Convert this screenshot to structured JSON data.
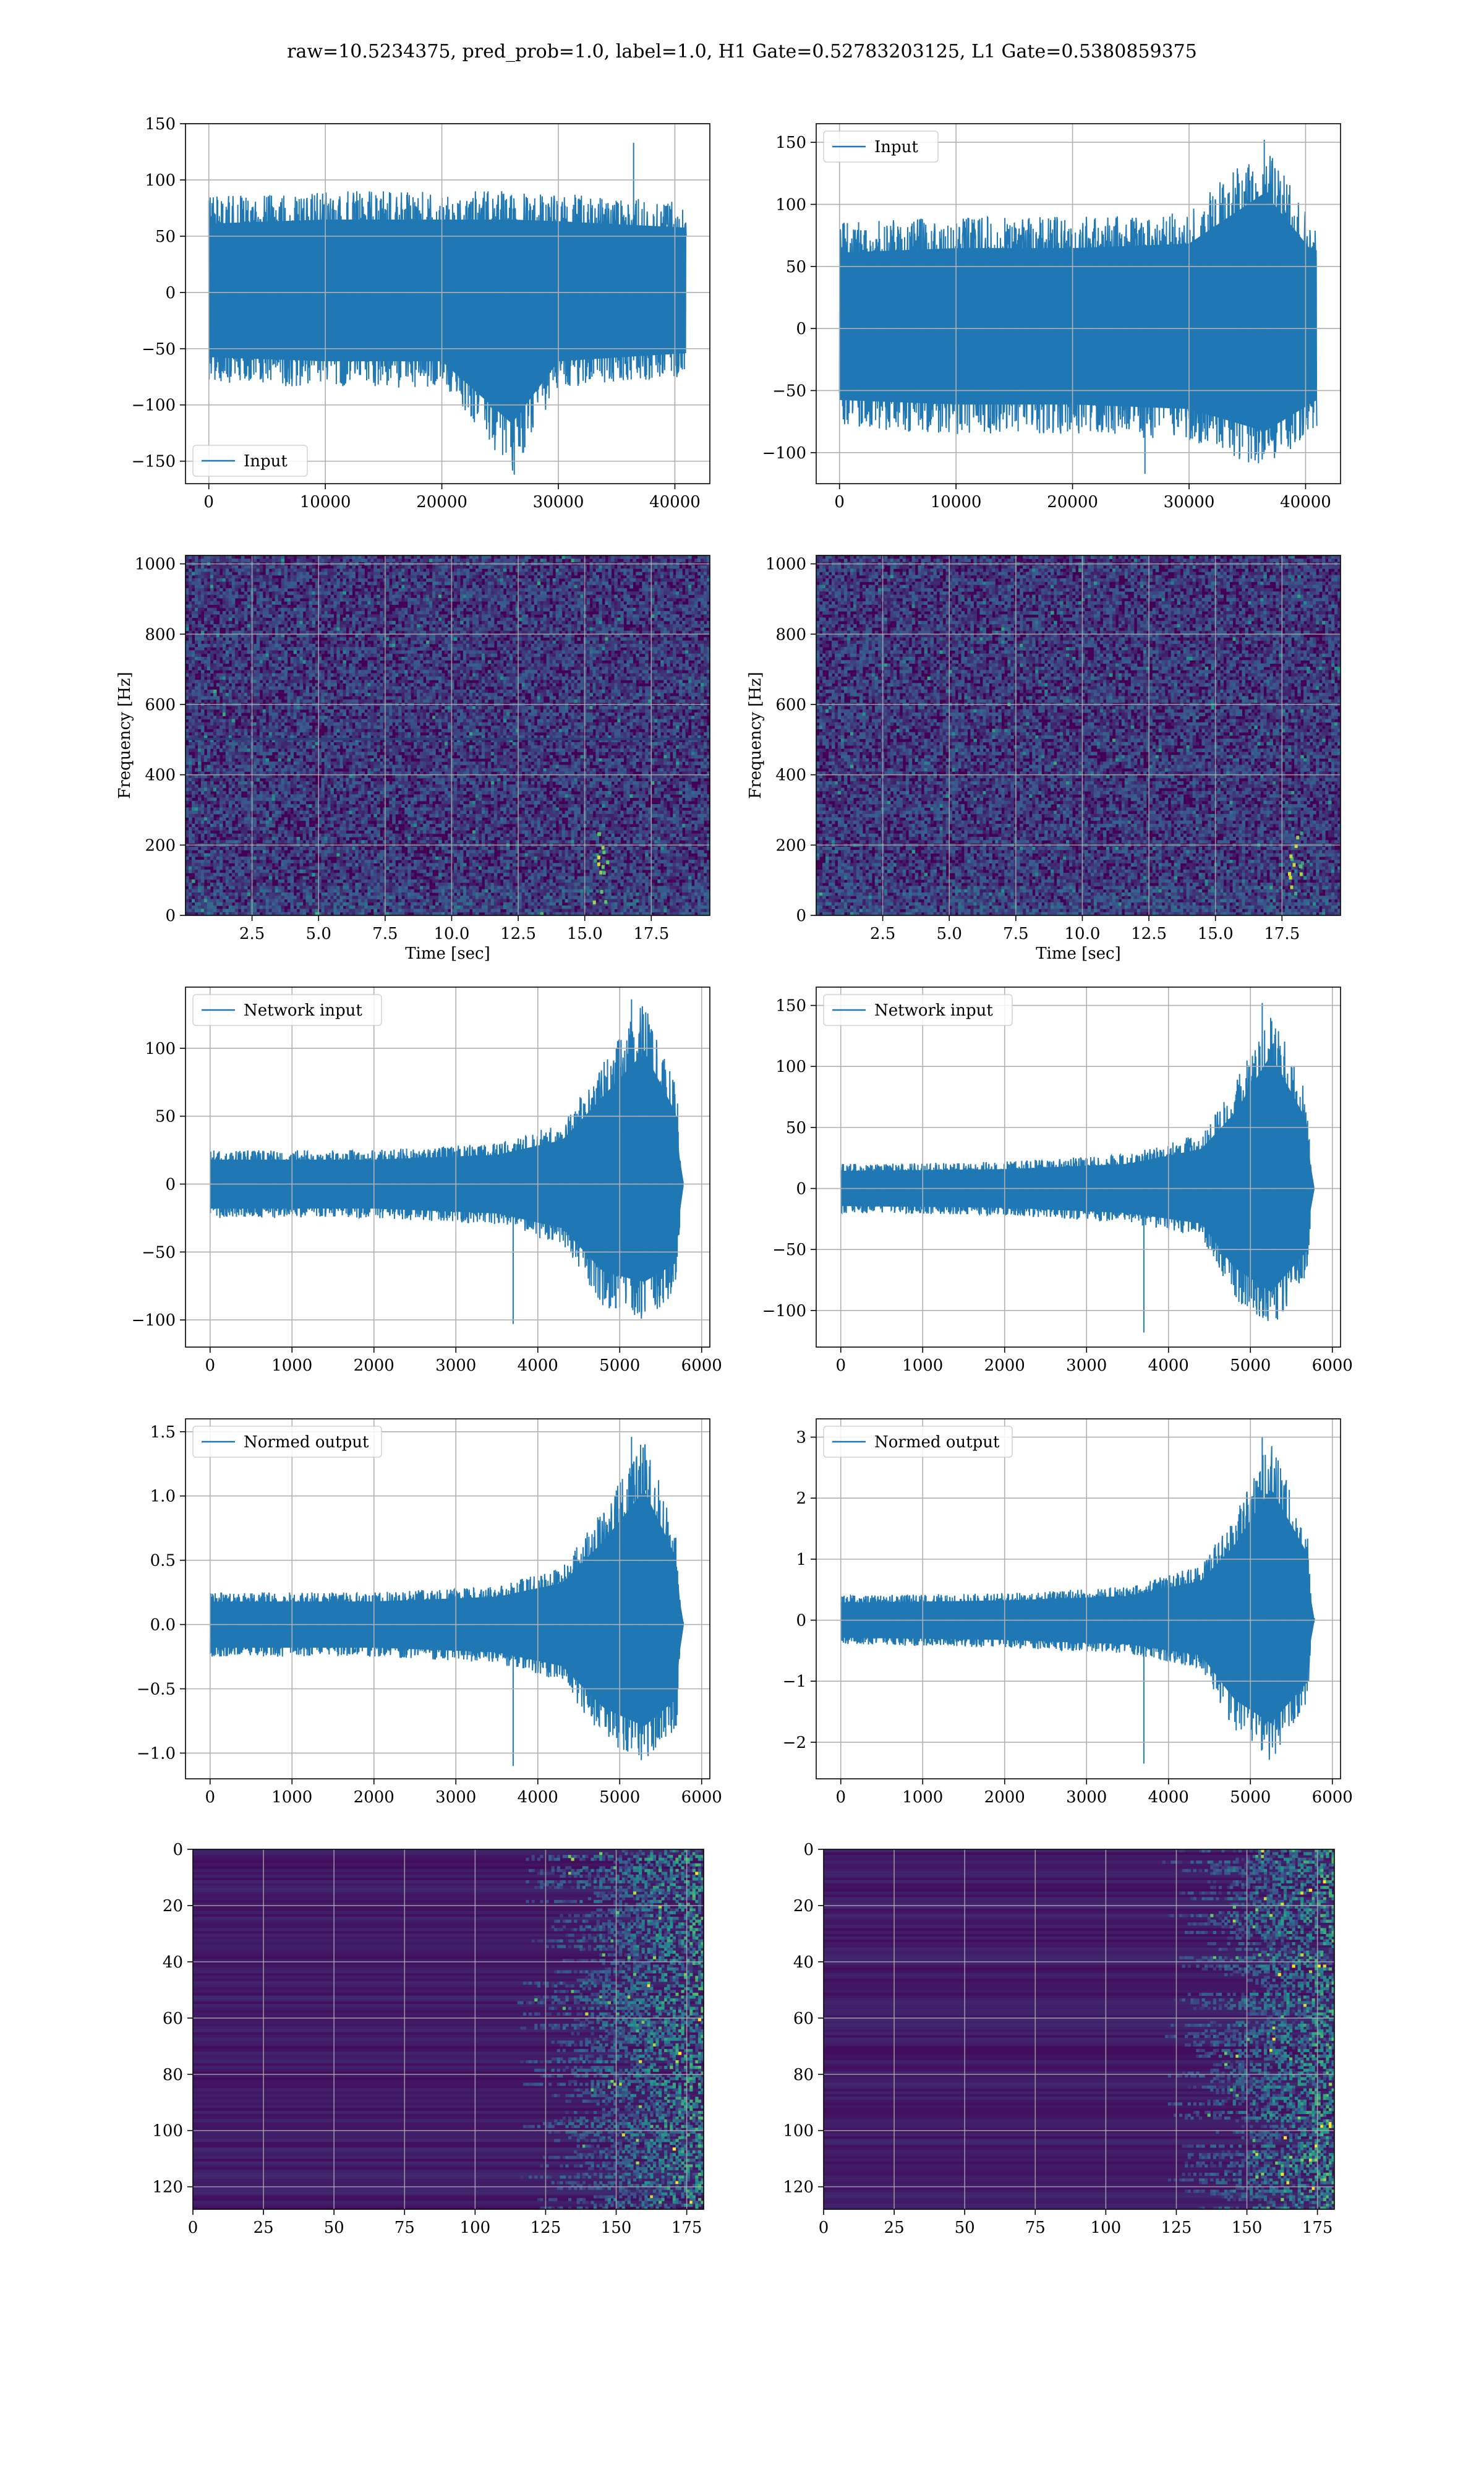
{
  "suptitle": "raw=10.5234375, pred_prob=1.0, label=1.0, H1 Gate=0.52783203125, L1 Gate=0.5380859375",
  "colors": {
    "line": "#1f77b4",
    "grid": "#b0b0b0",
    "viridis_low": "#440154",
    "viridis_mid": "#21918c",
    "viridis_high": "#fde725"
  },
  "chart_data": [
    {
      "id": "h1-input",
      "type": "line",
      "title": "",
      "xlabel": "",
      "ylabel": "",
      "xlim": [
        -2000,
        43000
      ],
      "ylim": [
        -170,
        150
      ],
      "xticks": [
        0,
        10000,
        20000,
        30000,
        40000
      ],
      "xtick_labels": [
        "0",
        "10000",
        "20000",
        "30000",
        "40000"
      ],
      "yticks": [
        -150,
        -100,
        -50,
        0,
        50,
        100,
        150
      ],
      "ytick_labels": [
        "−150",
        "−100",
        "−50",
        "0",
        "50",
        "100",
        "150"
      ],
      "legend": {
        "label": "Input",
        "loc": "lower left"
      },
      "series": [
        {
          "name": "Input",
          "x_range": [
            0,
            40960
          ],
          "envelope_points": [
            [
              0,
              -80,
              85
            ],
            [
              10000,
              -85,
              90
            ],
            [
              20000,
              -85,
              90
            ],
            [
              26000,
              -162,
              90
            ],
            [
              30000,
              -85,
              88
            ],
            [
              40960,
              -75,
              80
            ]
          ],
          "peak_max": 133,
          "peak_min": -162,
          "typical_band": [
            -75,
            75
          ]
        }
      ],
      "grid": true
    },
    {
      "id": "l1-input",
      "type": "line",
      "title": "",
      "xlabel": "",
      "ylabel": "",
      "xlim": [
        -2000,
        43000
      ],
      "ylim": [
        -125,
        165
      ],
      "xticks": [
        0,
        10000,
        20000,
        30000,
        40000
      ],
      "xtick_labels": [
        "0",
        "10000",
        "20000",
        "30000",
        "40000"
      ],
      "yticks": [
        -100,
        -50,
        0,
        50,
        100,
        150
      ],
      "ytick_labels": [
        "−100",
        "−50",
        "0",
        "50",
        "100",
        "150"
      ],
      "legend": {
        "label": "Input",
        "loc": "upper left"
      },
      "series": [
        {
          "name": "Input",
          "x_range": [
            0,
            40960
          ],
          "envelope_points": [
            [
              0,
              -80,
              85
            ],
            [
              10000,
              -85,
              90
            ],
            [
              20000,
              -85,
              90
            ],
            [
              30000,
              -90,
              95
            ],
            [
              36500,
              -115,
              152
            ],
            [
              40960,
              -80,
              80
            ]
          ],
          "peak_max": 152,
          "peak_min": -117,
          "typical_band": [
            -70,
            70
          ]
        }
      ],
      "grid": true
    },
    {
      "id": "h1-spectrogram",
      "type": "heatmap",
      "title": "",
      "xlabel": "Time [sec]",
      "ylabel": "Frequency [Hz]",
      "xlim": [
        0,
        19.7
      ],
      "ylim": [
        0,
        1024
      ],
      "xticks": [
        2.5,
        5.0,
        7.5,
        10.0,
        12.5,
        15.0,
        17.5
      ],
      "xtick_labels": [
        "2.5",
        "5.0",
        "7.5",
        "10.0",
        "12.5",
        "15.0",
        "17.5"
      ],
      "yticks": [
        0,
        200,
        400,
        600,
        800,
        1000
      ],
      "ytick_labels": [
        "0",
        "200",
        "400",
        "600",
        "800",
        "1000"
      ],
      "colormap": "viridis",
      "grid": true
    },
    {
      "id": "l1-spectrogram",
      "type": "heatmap",
      "title": "",
      "xlabel": "Time [sec]",
      "ylabel": "Frequency [Hz]",
      "xlim": [
        0,
        19.7
      ],
      "ylim": [
        0,
        1024
      ],
      "xticks": [
        2.5,
        5.0,
        7.5,
        10.0,
        12.5,
        15.0,
        17.5
      ],
      "xtick_labels": [
        "2.5",
        "5.0",
        "7.5",
        "10.0",
        "12.5",
        "15.0",
        "17.5"
      ],
      "yticks": [
        0,
        200,
        400,
        600,
        800,
        1000
      ],
      "ytick_labels": [
        "0",
        "200",
        "400",
        "600",
        "800",
        "1000"
      ],
      "colormap": "viridis",
      "grid": true
    },
    {
      "id": "h1-network-input",
      "type": "line",
      "title": "",
      "xlabel": "",
      "ylabel": "",
      "xlim": [
        -300,
        6100
      ],
      "ylim": [
        -120,
        145
      ],
      "xticks": [
        0,
        1000,
        2000,
        3000,
        4000,
        5000,
        6000
      ],
      "xtick_labels": [
        "0",
        "1000",
        "2000",
        "3000",
        "4000",
        "5000",
        "6000"
      ],
      "yticks": [
        -100,
        -50,
        0,
        50,
        100
      ],
      "ytick_labels": [
        "−100",
        "−50",
        "0",
        "50",
        "100"
      ],
      "legend": {
        "label": "Network input",
        "loc": "upper left"
      },
      "series": [
        {
          "name": "Network input",
          "x_range": [
            0,
            5780
          ],
          "envelope_points": [
            [
              0,
              -25,
              25
            ],
            [
              2000,
              -25,
              25
            ],
            [
              3500,
              -30,
              30
            ],
            [
              4300,
              -45,
              45
            ],
            [
              4800,
              -90,
              90
            ],
            [
              5300,
              -100,
              135
            ],
            [
              5700,
              -80,
              70
            ],
            [
              5750,
              -2,
              2
            ]
          ],
          "peak_max": 136,
          "peak_min": -103,
          "typical_band": [
            -12,
            12
          ]
        }
      ],
      "grid": true
    },
    {
      "id": "l1-network-input",
      "type": "line",
      "title": "",
      "xlabel": "",
      "ylabel": "",
      "xlim": [
        -300,
        6100
      ],
      "ylim": [
        -130,
        165
      ],
      "xticks": [
        0,
        1000,
        2000,
        3000,
        4000,
        5000,
        6000
      ],
      "xtick_labels": [
        "0",
        "1000",
        "2000",
        "3000",
        "4000",
        "5000",
        "6000"
      ],
      "yticks": [
        -100,
        -50,
        0,
        50,
        100,
        150
      ],
      "ytick_labels": [
        "−100",
        "−50",
        "0",
        "50",
        "100",
        "150"
      ],
      "legend": {
        "label": "Network input",
        "loc": "upper left"
      },
      "series": [
        {
          "name": "Network input",
          "x_range": [
            0,
            5780
          ],
          "envelope_points": [
            [
              0,
              -20,
              20
            ],
            [
              2000,
              -22,
              22
            ],
            [
              3500,
              -28,
              28
            ],
            [
              4400,
              -40,
              45
            ],
            [
              4800,
              -90,
              85
            ],
            [
              5250,
              -118,
              152
            ],
            [
              5700,
              -70,
              75
            ],
            [
              5750,
              -2,
              2
            ]
          ],
          "peak_max": 152,
          "peak_min": -118,
          "typical_band": [
            -10,
            10
          ]
        }
      ],
      "grid": true
    },
    {
      "id": "h1-normed-output",
      "type": "line",
      "title": "",
      "xlabel": "",
      "ylabel": "",
      "xlim": [
        -300,
        6100
      ],
      "ylim": [
        -1.2,
        1.6
      ],
      "xticks": [
        0,
        1000,
        2000,
        3000,
        4000,
        5000,
        6000
      ],
      "xtick_labels": [
        "0",
        "1000",
        "2000",
        "3000",
        "4000",
        "5000",
        "6000"
      ],
      "yticks": [
        -1.0,
        -0.5,
        0.0,
        0.5,
        1.0,
        1.5
      ],
      "ytick_labels": [
        "−1.0",
        "−0.5",
        "0.0",
        "0.5",
        "1.0",
        "1.5"
      ],
      "legend": {
        "label": "Normed output",
        "loc": "upper left"
      },
      "series": [
        {
          "name": "Normed output",
          "x_range": [
            0,
            5780
          ],
          "envelope_points": [
            [
              0,
              -0.25,
              0.25
            ],
            [
              2000,
              -0.25,
              0.25
            ],
            [
              3500,
              -0.3,
              0.3
            ],
            [
              4300,
              -0.45,
              0.45
            ],
            [
              4800,
              -0.9,
              0.9
            ],
            [
              5300,
              -1.1,
              1.45
            ],
            [
              5700,
              -0.8,
              0.7
            ],
            [
              5750,
              -0.02,
              0.02
            ]
          ],
          "peak_max": 1.46,
          "peak_min": -1.1,
          "typical_band": [
            -0.12,
            0.12
          ]
        }
      ],
      "grid": true
    },
    {
      "id": "l1-normed-output",
      "type": "line",
      "title": "",
      "xlabel": "",
      "ylabel": "",
      "xlim": [
        -300,
        6100
      ],
      "ylim": [
        -2.6,
        3.3
      ],
      "xticks": [
        0,
        1000,
        2000,
        3000,
        4000,
        5000,
        6000
      ],
      "xtick_labels": [
        "0",
        "1000",
        "2000",
        "3000",
        "4000",
        "5000",
        "6000"
      ],
      "yticks": [
        -2,
        -1,
        0,
        1,
        2,
        3
      ],
      "ytick_labels": [
        "−2",
        "−1",
        "0",
        "1",
        "2",
        "3"
      ],
      "legend": {
        "label": "Normed output",
        "loc": "upper left"
      },
      "series": [
        {
          "name": "Normed output",
          "x_range": [
            0,
            5780
          ],
          "envelope_points": [
            [
              0,
              -0.4,
              0.4
            ],
            [
              2000,
              -0.45,
              0.45
            ],
            [
              3500,
              -0.55,
              0.55
            ],
            [
              4400,
              -0.8,
              0.9
            ],
            [
              4800,
              -1.8,
              1.7
            ],
            [
              5250,
              -2.35,
              3.0
            ],
            [
              5700,
              -1.4,
              1.5
            ],
            [
              5750,
              -0.04,
              0.04
            ]
          ],
          "peak_max": 3.0,
          "peak_min": -2.35,
          "typical_band": [
            -0.2,
            0.2
          ]
        }
      ],
      "grid": true
    },
    {
      "id": "h1-feature-map",
      "type": "heatmap",
      "title": "",
      "xlabel": "",
      "ylabel": "",
      "xlim": [
        0,
        181
      ],
      "ylim": [
        0,
        128
      ],
      "y_inverted": true,
      "xticks": [
        0,
        25,
        50,
        75,
        100,
        125,
        150,
        175
      ],
      "xtick_labels": [
        "0",
        "25",
        "50",
        "75",
        "100",
        "125",
        "150",
        "175"
      ],
      "yticks": [
        0,
        20,
        40,
        60,
        80,
        100,
        120
      ],
      "ytick_labels": [
        "0",
        "20",
        "40",
        "60",
        "80",
        "100",
        "120"
      ],
      "colormap": "viridis",
      "activity_onset_x": 115,
      "grid": true
    },
    {
      "id": "l1-feature-map",
      "type": "heatmap",
      "title": "",
      "xlabel": "",
      "ylabel": "",
      "xlim": [
        0,
        181
      ],
      "ylim": [
        0,
        128
      ],
      "y_inverted": true,
      "xticks": [
        0,
        25,
        50,
        75,
        100,
        125,
        150,
        175
      ],
      "xtick_labels": [
        "0",
        "25",
        "50",
        "75",
        "100",
        "125",
        "150",
        "175"
      ],
      "yticks": [
        0,
        20,
        40,
        60,
        80,
        100,
        120
      ],
      "ytick_labels": [
        "0",
        "20",
        "40",
        "60",
        "80",
        "100",
        "120"
      ],
      "colormap": "viridis",
      "activity_onset_x": 120,
      "grid": true
    }
  ]
}
